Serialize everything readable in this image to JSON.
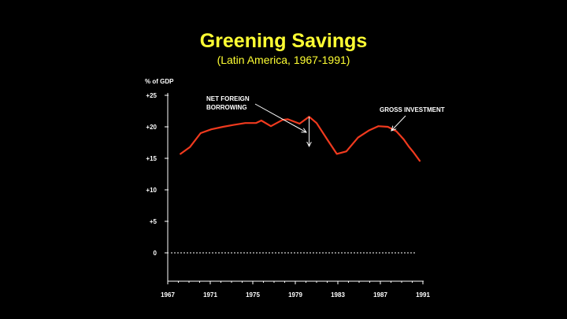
{
  "colors": {
    "background": "#000000",
    "title": "#FFFF33",
    "text": "#FFFFFF",
    "series": "#F03A1E"
  },
  "chart_data": {
    "type": "line",
    "title": "Greening Savings",
    "subtitle": "(Latin America, 1967-1991)",
    "ylabel": "% of GDP",
    "xlabel": "",
    "xlim": [
      1967,
      1991
    ],
    "ylim": [
      -4.5,
      25
    ],
    "x_ticks": [
      "1967",
      "1971",
      "1975",
      "1979",
      "1983",
      "1987",
      "1991"
    ],
    "y_ticks": [
      "+25",
      "+20",
      "+15",
      "+10",
      "+5",
      "0"
    ],
    "y_tick_values": [
      25,
      20,
      15,
      10,
      5,
      0
    ],
    "grid": false,
    "zero_line_style": "dotted",
    "series": [
      {
        "name": "GROSS INVESTMENT",
        "x": [
          1968.2,
          1969.1,
          1970.1,
          1971.1,
          1972.2,
          1973.2,
          1974.3,
          1975.3,
          1975.8,
          1976.7,
          1977.8,
          1978.3,
          1979.4,
          1980.3,
          1981.0,
          1982.0,
          1982.9,
          1983.8,
          1984.9,
          1985.9,
          1986.8,
          1987.7,
          1988.5,
          1989.2,
          1989.7,
          1990.1,
          1990.7
        ],
        "y": [
          15.7,
          16.8,
          19.0,
          19.6,
          20.0,
          20.3,
          20.6,
          20.6,
          21.0,
          20.1,
          21.1,
          21.2,
          20.5,
          21.6,
          20.6,
          18.0,
          15.7,
          16.1,
          18.3,
          19.4,
          20.1,
          20.0,
          19.3,
          18.0,
          16.8,
          16.0,
          14.6
        ]
      }
    ],
    "annotations": [
      {
        "text_lines": [
          "NET FOREIGN",
          "BORROWING"
        ],
        "x": 1980.3,
        "y": 21.6
      },
      {
        "text_lines": [
          "GROSS INVESTMENT"
        ],
        "x": 1988.3,
        "y": 19.4
      }
    ],
    "bracket": {
      "x": 1980.3,
      "y_top": 21.6,
      "y_bottom": 16.9
    }
  }
}
